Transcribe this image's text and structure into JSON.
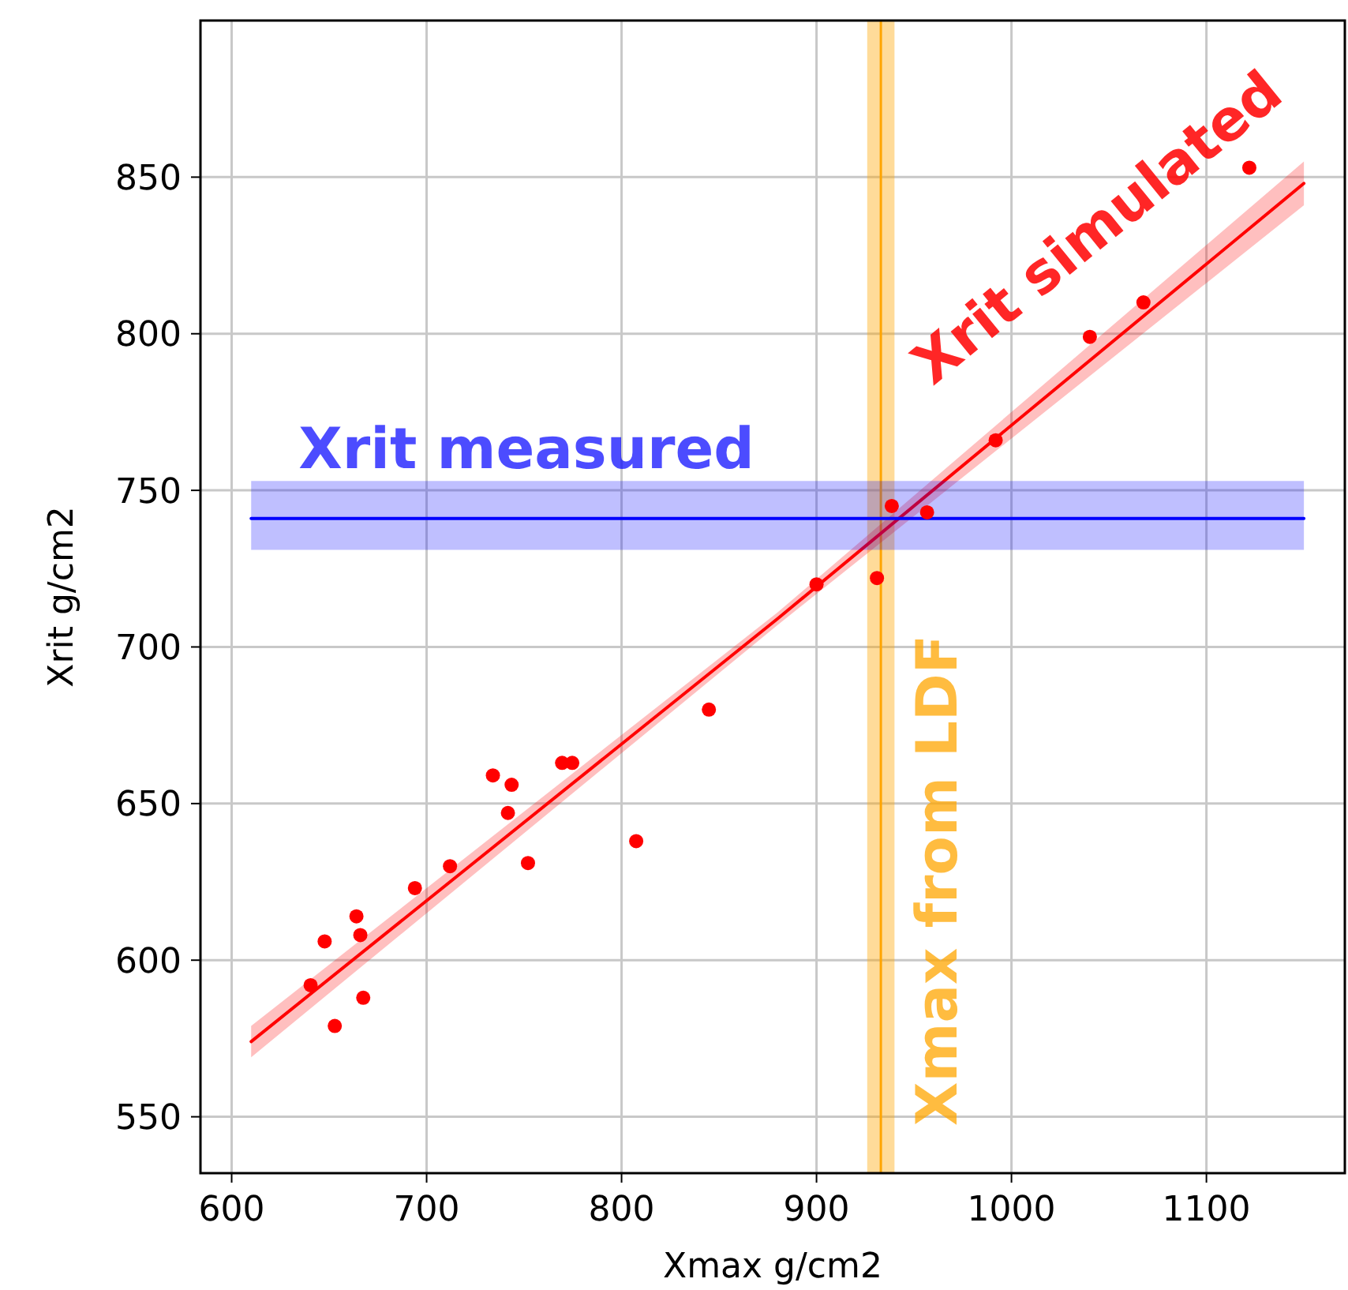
{
  "chart_data": {
    "type": "scatter",
    "xlabel": "Xmax g/cm2",
    "ylabel": "Xrit g/cm2",
    "xlim": [
      584,
      1171
    ],
    "ylim": [
      532,
      900
    ],
    "xticks": [
      600,
      700,
      800,
      900,
      1000,
      1100
    ],
    "yticks": [
      550,
      600,
      650,
      700,
      750,
      800,
      850
    ],
    "grid": true,
    "series": [
      {
        "marker": "circle",
        "color": "#ff0000",
        "x": [
          640.5,
          647.7,
          652.9,
          664,
          666,
          667.5,
          694,
          712,
          734,
          743.6,
          741.7,
          752,
          769.5,
          774.7,
          807.5,
          844.8,
          900,
          931,
          938.6,
          956.7,
          991.9,
          1040.2,
          1067.7,
          1122
        ],
        "values": [
          592,
          606,
          579,
          614,
          608,
          588,
          623,
          630,
          659,
          656,
          647,
          631,
          663,
          663,
          638,
          680,
          720,
          722,
          745,
          743,
          766,
          799,
          810,
          853
        ]
      },
      {
        "type": "line",
        "name": "Xrit simulated",
        "color": "#ff0000",
        "x": [
          610,
          880,
          1150
        ],
        "values": [
          574,
          709,
          848
        ],
        "lower": [
          569,
          707,
          841
        ],
        "upper": [
          579,
          711,
          855
        ]
      },
      {
        "type": "line",
        "name": "Xrit measured",
        "color": "#0000ff",
        "x": [
          610,
          1150
        ],
        "values": [
          741,
          741
        ],
        "lower": [
          731,
          731
        ],
        "upper": [
          753,
          753
        ]
      }
    ],
    "ref_lines": [
      {
        "axis": "x",
        "value": 933,
        "label": "Xmax from LDF",
        "color": "#ffa500"
      }
    ],
    "bands": [
      {
        "axis": "x",
        "from": 926,
        "to": 940,
        "color": "#ffa500"
      }
    ]
  }
}
